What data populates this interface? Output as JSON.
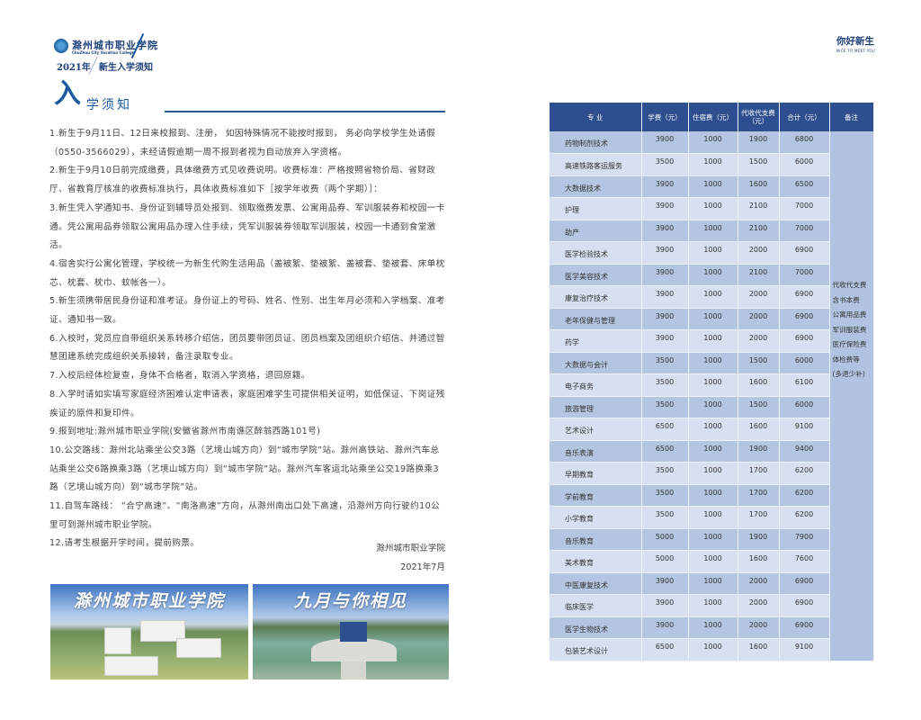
{
  "header": {
    "school_name": "滁州城市职业学院",
    "school_name_en": "ChuZhou City Vocation College",
    "year": "2021年",
    "subtitle": "新生入学须知",
    "right_title": "你好新生",
    "right_title_en": "NICE TO MEET YOU"
  },
  "section": {
    "title_big": "入",
    "title_rest": "学须知"
  },
  "notice": [
    "1.新生于9月11日、12日来校报到、注册， 如因特殊情况不能按时报到， 务必向学校学生处请假（0550-3566029），未经请假逾期一周不报到者视为自动放弃入学资格。",
    "2.新生于9月10日前完成缴费，具体缴费方式见收费说明。收费标准：严格按照省物价局、省财政厅、省教育厅核准的收费标准执行，具体收费标准如下［按学年收费（两个学期）］：",
    "3.新生凭入学通知书、身份证到辅导员处报到、领取缴费发票、公寓用品券、军训服装券和校园一卡通。凭公寓用品券领取公寓用品办理入住手续，凭军训服装券领取军训服装，校园一卡通到食堂激活。",
    "4.宿舍实行公寓化管理，学校统一为新生代购生活用品（盖被絮、垫被絮、盖被套、垫被套、床单枕芯、枕套、枕巾、蚊帐各一）。",
    "5.新生须携带居民身份证和准考证。身份证上的号码、姓名、性别、出生年月必须和入学档案、准考证、通知书一致。",
    "6.入校时，党员应自带组织关系转移介绍信，团员要带团员证、团员档案及团组织介绍信、并通过智慧团建系统完成组织关系接转，备注录取专业。",
    "7.入校后经体检复查，身体不合格者，取消入学资格，退回原籍。",
    "8.入学时请如实填写家庭经济困难认定申请表，家庭困难学生可提供相关证明，如低保证、下岗证残疾证的原件和复印件。",
    "9.报到地址:滁州城市职业学院(安徽省滁州市南谯区醉翁西路101号)",
    "10.公交路线：滁州北站乘坐公交3路（艺境山城方向）到“城市学院”站。滁州高铁站、滁州汽车总站乘坐公交6路换乘3路（艺境山城方向）到“城市学院”站。滁州汽车客运北站乘坐公交19路换乘3路（艺境山城方向）到“城市学院”站。",
    "11.自驾车路线： “合宁高速”、“南洛高速”方向，从滁州南出口处下高速，沿滁州方向行驶约10公里可到滁州城市职业学院。",
    "12.请考生根据开学时间，提前购票。"
  ],
  "signature": {
    "org": "滁州城市职业学院",
    "date": "2021年7月"
  },
  "photos": [
    {
      "caption": "滁州城市职业学院"
    },
    {
      "caption": "九月与你相见"
    }
  ],
  "fee_table": {
    "headers": [
      "专 业",
      "学费（元）",
      "住宿费（元）",
      "代收代支费（元）",
      "合计（元）",
      "备注"
    ],
    "rows": [
      [
        "药物制剂技术",
        "3900",
        "1000",
        "1900",
        "6800"
      ],
      [
        "高速铁路客运服务",
        "3500",
        "1000",
        "1500",
        "6000"
      ],
      [
        "大数据技术",
        "3900",
        "1000",
        "1600",
        "6500"
      ],
      [
        "护理",
        "3900",
        "1000",
        "2100",
        "7000"
      ],
      [
        "助产",
        "3900",
        "1000",
        "2100",
        "7000"
      ],
      [
        "医学检验技术",
        "3900",
        "1000",
        "2000",
        "6900"
      ],
      [
        "医学美容技术",
        "3900",
        "1000",
        "2100",
        "7000"
      ],
      [
        "康复治疗技术",
        "3900",
        "1000",
        "2000",
        "6900"
      ],
      [
        "老年保健与管理",
        "3900",
        "1000",
        "2000",
        "6900"
      ],
      [
        "药学",
        "3900",
        "1000",
        "2000",
        "6900"
      ],
      [
        "大数据与会计",
        "3500",
        "1000",
        "1500",
        "6000"
      ],
      [
        "电子商务",
        "3500",
        "1000",
        "1600",
        "6100"
      ],
      [
        "旅游管理",
        "3500",
        "1000",
        "1500",
        "6000"
      ],
      [
        "艺术设计",
        "6500",
        "1000",
        "1600",
        "9100"
      ],
      [
        "音乐表演",
        "6500",
        "1000",
        "1900",
        "9400"
      ],
      [
        "早期教育",
        "3500",
        "1000",
        "1700",
        "6200"
      ],
      [
        "学前教育",
        "3500",
        "1000",
        "1700",
        "6200"
      ],
      [
        "小学教育",
        "3500",
        "1000",
        "1700",
        "6200"
      ],
      [
        "音乐教育",
        "5000",
        "1000",
        "1900",
        "7900"
      ],
      [
        "美术教育",
        "5000",
        "1000",
        "1600",
        "7600"
      ],
      [
        "中医康复技术",
        "3900",
        "1000",
        "2000",
        "6900"
      ],
      [
        "临床医学",
        "3900",
        "1000",
        "2000",
        "6900"
      ],
      [
        "医学生物技术",
        "3900",
        "1000",
        "2000",
        "6900"
      ],
      [
        "包装艺术设计",
        "6500",
        "1000",
        "1600",
        "9100"
      ]
    ],
    "remark_lines": [
      "代收代支费",
      "含书本费",
      "公寓用品费",
      "军训服装费",
      "医疗保险费",
      "体检费等",
      "(多退少补)"
    ]
  },
  "colors": {
    "header_bg": "#2e4f8f",
    "row_dark": "#b4c5e2",
    "row_light": "#d7e0f0",
    "brand": "#1d5aa0"
  }
}
